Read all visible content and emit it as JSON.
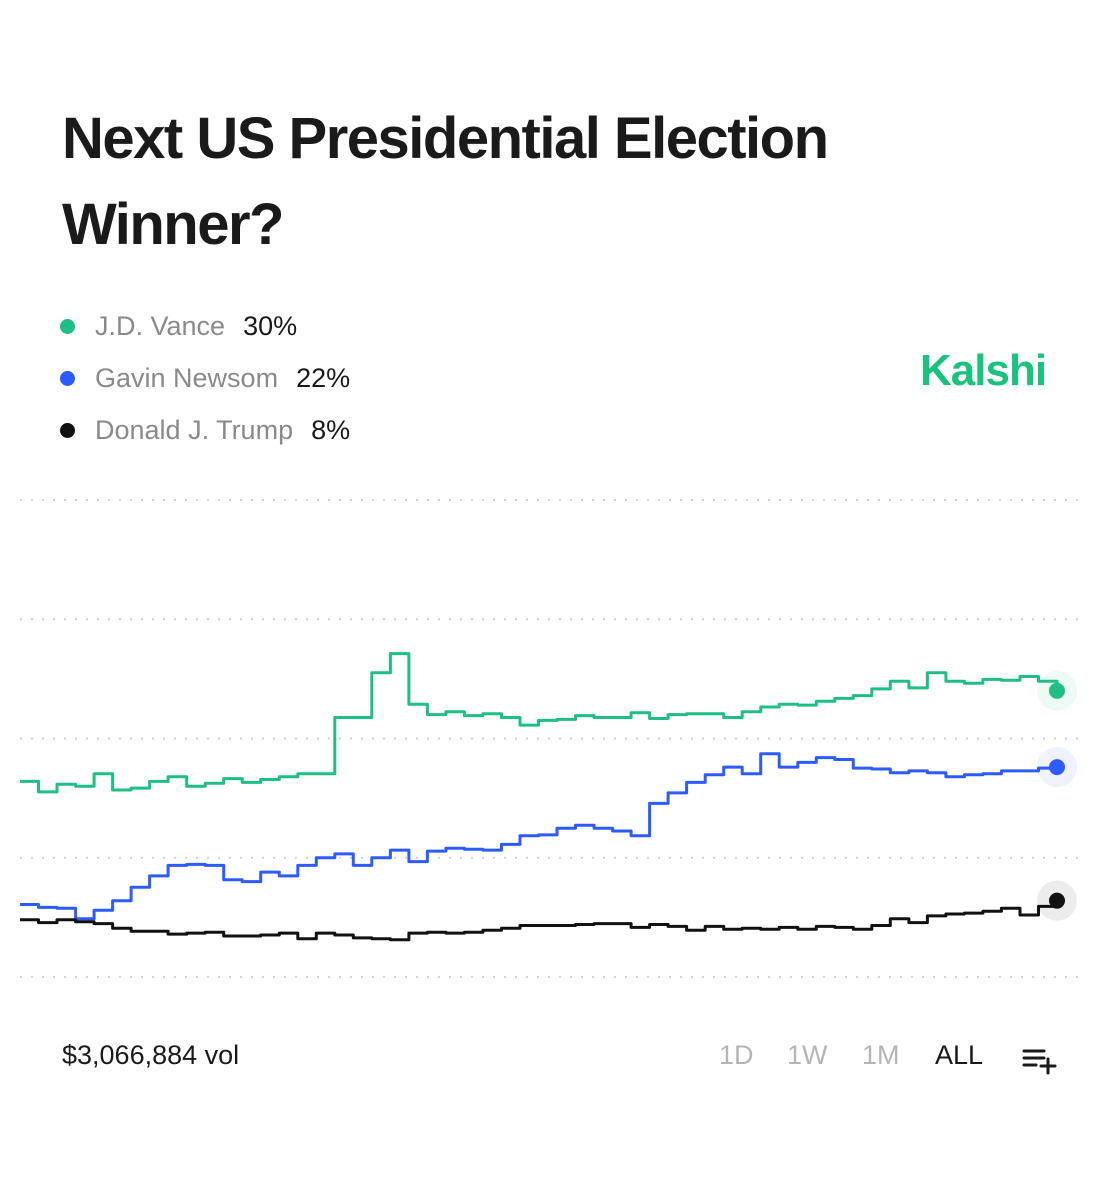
{
  "title_line1": "Next US Presidential Election",
  "title_line2": "Winner?",
  "legend": [
    {
      "name": "J.D. Vance",
      "pct": "30%",
      "color": "#1fbf84"
    },
    {
      "name": "Gavin Newsom",
      "pct": "22%",
      "color": "#2d5bff"
    },
    {
      "name": "Donald J. Trump",
      "pct": "8%",
      "color": "#111111"
    }
  ],
  "brand": {
    "name": "Kalshi",
    "color": "#19c37d"
  },
  "volume": "$3,066,884 vol",
  "ranges": [
    "1D",
    "1W",
    "1M",
    "ALL"
  ],
  "active_range": "ALL",
  "chart_data": {
    "type": "line",
    "title": "Next US Presidential Election Winner?",
    "xlabel": "",
    "ylabel": "",
    "ylim": [
      0,
      50
    ],
    "x_points": 57,
    "series": [
      {
        "name": "J.D. Vance",
        "color": "#1fbf84",
        "values": [
          20.5,
          19.4,
          20.2,
          20.0,
          21.3,
          19.6,
          19.8,
          20.5,
          21.0,
          20.0,
          20.3,
          20.8,
          20.4,
          20.7,
          21.0,
          21.3,
          21.3,
          27.2,
          27.2,
          31.9,
          33.9,
          28.6,
          27.5,
          27.8,
          27.4,
          27.6,
          27.2,
          26.4,
          26.9,
          27.0,
          27.4,
          27.2,
          27.2,
          27.7,
          27.1,
          27.5,
          27.6,
          27.6,
          27.2,
          27.8,
          28.3,
          28.6,
          28.5,
          28.9,
          29.2,
          29.5,
          30.2,
          31.0,
          30.3,
          31.9,
          31.0,
          30.8,
          31.2,
          31.1,
          31.5,
          31.0,
          30.0
        ]
      },
      {
        "name": "Gavin Newsom",
        "color": "#2d5bff",
        "values": [
          7.6,
          7.3,
          7.2,
          6.1,
          7.0,
          8.0,
          9.4,
          10.6,
          11.7,
          11.8,
          11.7,
          10.2,
          10.0,
          11.0,
          10.6,
          11.7,
          12.5,
          12.9,
          11.7,
          12.5,
          13.3,
          12.1,
          13.2,
          13.5,
          13.4,
          13.3,
          13.9,
          14.8,
          14.9,
          15.6,
          15.9,
          15.6,
          15.3,
          14.8,
          18.2,
          19.3,
          20.4,
          21.2,
          22.0,
          21.3,
          23.4,
          22.0,
          22.5,
          23.0,
          22.8,
          21.9,
          21.8,
          21.4,
          21.6,
          21.4,
          21.0,
          21.2,
          21.3,
          21.6,
          21.6,
          21.9,
          22.0
        ]
      },
      {
        "name": "Donald J. Trump",
        "color": "#111111",
        "values": [
          6.0,
          5.7,
          6.0,
          5.8,
          5.6,
          5.1,
          4.8,
          4.8,
          4.5,
          4.6,
          4.7,
          4.3,
          4.3,
          4.4,
          4.6,
          4.0,
          4.6,
          4.4,
          4.1,
          4.0,
          3.9,
          4.6,
          4.7,
          4.6,
          4.7,
          4.9,
          5.1,
          5.4,
          5.4,
          5.4,
          5.5,
          5.6,
          5.6,
          5.2,
          5.5,
          5.3,
          4.9,
          5.3,
          5.0,
          5.1,
          5.0,
          5.2,
          5.0,
          5.3,
          5.2,
          5.0,
          5.4,
          6.1,
          5.7,
          6.4,
          6.6,
          6.7,
          6.9,
          7.2,
          6.5,
          7.4,
          8.0
        ]
      }
    ]
  }
}
